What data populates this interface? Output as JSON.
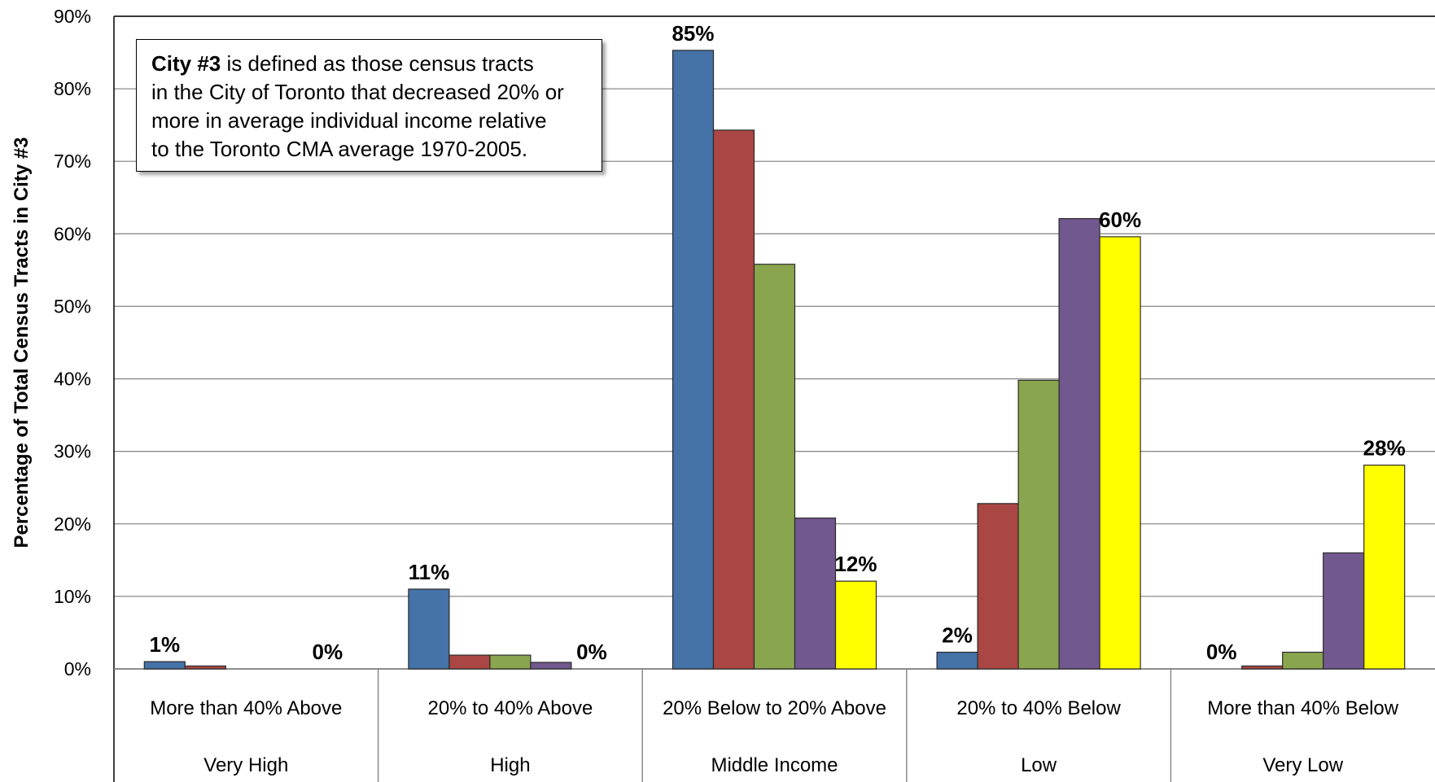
{
  "chart_data": {
    "type": "bar",
    "ylabel": "Percentage of Total Census Tracts in City #3",
    "xlabel": "",
    "ylim": [
      0,
      90
    ],
    "yticks": [
      "0%",
      "10%",
      "20%",
      "30%",
      "40%",
      "50%",
      "60%",
      "70%",
      "80%",
      "90%"
    ],
    "grid": true,
    "categories": [
      {
        "range": "More than 40% Above",
        "group": "Very High"
      },
      {
        "range": "20% to 40% Above",
        "group": "High"
      },
      {
        "range": "20% Below to 20% Above",
        "group": "Middle Income"
      },
      {
        "range": "20% to 40% Below",
        "group": "Low"
      },
      {
        "range": "More than 40% Below",
        "group": "Very Low"
      }
    ],
    "series": [
      {
        "color": "#4572A7",
        "values": [
          1.0,
          11.0,
          85.3,
          2.3,
          0
        ]
      },
      {
        "color": "#AA4643",
        "values": [
          0.4,
          1.9,
          74.3,
          22.8,
          0.4
        ]
      },
      {
        "color": "#89A54E",
        "values": [
          0,
          1.9,
          55.8,
          39.8,
          2.3
        ]
      },
      {
        "color": "#71588F",
        "values": [
          0,
          0.9,
          20.8,
          62.1,
          16.0
        ]
      },
      {
        "color": "#FFFF00",
        "values": [
          0,
          0,
          12.1,
          59.6,
          28.1
        ]
      }
    ],
    "data_labels": [
      {
        "category": 0,
        "series": 0,
        "text": "1%"
      },
      {
        "category": 0,
        "series": 4,
        "text": "0%"
      },
      {
        "category": 1,
        "series": 0,
        "text": "11%"
      },
      {
        "category": 1,
        "series": 4,
        "text": "0%"
      },
      {
        "category": 2,
        "series": 0,
        "text": "85%"
      },
      {
        "category": 2,
        "series": 4,
        "text": "12%"
      },
      {
        "category": 3,
        "series": 0,
        "text": "2%"
      },
      {
        "category": 3,
        "series": 4,
        "text": "60%"
      },
      {
        "category": 4,
        "series": 0,
        "text": "0%"
      },
      {
        "category": 4,
        "series": 4,
        "text": "28%"
      }
    ],
    "note": {
      "bold": "City #3",
      "text": " is defined as those census tracts in the City of Toronto that decreased 20% or more in average individual income relative to the Toronto CMA average 1970-2005.",
      "lines": [
        "in the City of Toronto that decreased 20% or",
        "more in average individual income relative",
        "to the Toronto CMA average 1970-2005."
      ],
      "first_line_rest": " is defined as those census tracts"
    }
  }
}
